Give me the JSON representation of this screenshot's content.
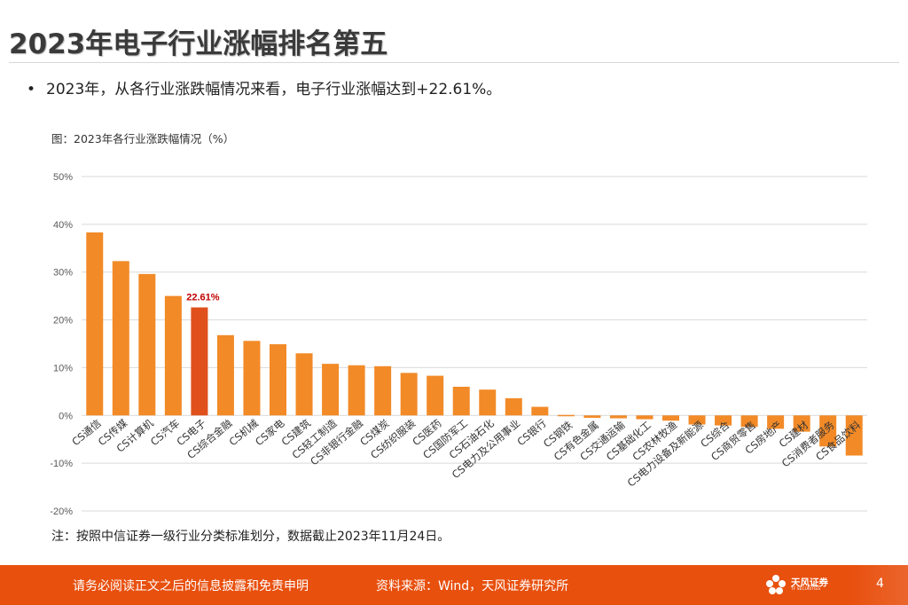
{
  "page": {
    "title": "2023年电子行业涨幅排名第五",
    "bullet": "•",
    "bullet_text": "2023年，从各行业涨跌幅情况来看，电子行业涨幅达到+22.61%。",
    "figure_caption": "图：2023年各行业涨跌幅情况（%）",
    "note": "注：按照中信证券一级行业分类标准划分，数据截止2023年11月24日。"
  },
  "footer": {
    "disclaimer": "请务必阅读正文之后的信息披露和免责申明",
    "source": "资料来源：Wind，天风证券研究所",
    "logo_name": "天风证券",
    "logo_sub": "TF SECURITIES",
    "page_number": "4"
  },
  "colors": {
    "bar": "#f28a27",
    "highlight": "#e0501c",
    "grid": "#d9d9d9",
    "footer": "#e8500e"
  },
  "chart_data": {
    "type": "bar",
    "title": "2023年各行业涨跌幅情况（%）",
    "xlabel": "",
    "ylabel": "",
    "ylim": [
      -20,
      50
    ],
    "yticks": [
      50,
      40,
      30,
      20,
      10,
      0,
      -10,
      -20
    ],
    "ytick_labels": [
      "50%",
      "40%",
      "30%",
      "20%",
      "10%",
      "0%",
      "-10%",
      "-20%"
    ],
    "grid": true,
    "categories": [
      "CS通信",
      "CS传媒",
      "CS计算机",
      "CS汽车",
      "CS电子",
      "CS综合金融",
      "CS机械",
      "CS家电",
      "CS建筑",
      "CS轻工制造",
      "CS非银行金融",
      "CS煤炭",
      "CS纺织服装",
      "CS医药",
      "CS国防军工",
      "CS石油石化",
      "CS电力及公用事业",
      "CS银行",
      "CS钢铁",
      "CS有色金属",
      "CS交通运输",
      "CS基础化工",
      "CS农林牧渔",
      "CS电力设备及新能源",
      "CS综合",
      "CS商贸零售",
      "CS房地产",
      "CS建材",
      "CS消费者服务",
      "CS食品饮料"
    ],
    "values": [
      38.3,
      32.3,
      29.6,
      25.0,
      22.61,
      16.8,
      15.6,
      14.9,
      13.0,
      10.8,
      10.5,
      10.3,
      8.9,
      8.3,
      6.0,
      5.4,
      3.6,
      1.8,
      0.1,
      -0.5,
      -0.6,
      -0.8,
      -1.1,
      -1.9,
      -2.1,
      -2.4,
      -2.8,
      -3.4,
      -6.5,
      -8.4
    ],
    "highlight_index": 4,
    "data_labels": [
      {
        "index": 4,
        "text": "22.61%"
      }
    ]
  }
}
